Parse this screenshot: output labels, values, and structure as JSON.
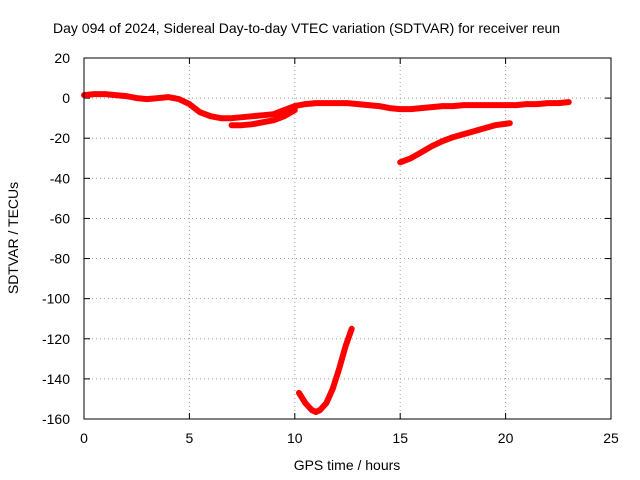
{
  "chart_data": {
    "type": "line",
    "title": "Day 094 of 2024, Sidereal Day-to-day VTEC variation (SDTVAR) for receiver reun",
    "xlabel": "GPS time / hours",
    "ylabel": "SDTVAR / TECUs",
    "xlim": [
      0,
      25
    ],
    "ylim": [
      -160,
      20
    ],
    "xticks": [
      0,
      5,
      10,
      15,
      20,
      25
    ],
    "yticks": [
      -160,
      -140,
      -120,
      -100,
      -80,
      -60,
      -40,
      -20,
      0,
      20
    ],
    "grid": true,
    "series_color": "#ff0000",
    "series": [
      {
        "name": "upper-track",
        "x": [
          0,
          0.5,
          1,
          1.5,
          2,
          2.5,
          3,
          3.5,
          4,
          4.5,
          5,
          5.5,
          6,
          6.5,
          7,
          7.5,
          8,
          8.5,
          9,
          9.5,
          10,
          10.5,
          11,
          11.5,
          12,
          12.5,
          13,
          13.5,
          14,
          14.5,
          15,
          15.5,
          16,
          16.5,
          17,
          17.5,
          18,
          18.5,
          19,
          19.5,
          20,
          20.5,
          21,
          21.5,
          22,
          22.5,
          23
        ],
        "y": [
          1.5,
          2,
          2,
          1.5,
          1,
          0,
          -0.5,
          0,
          0.5,
          -0.5,
          -3,
          -7,
          -9,
          -10,
          -10,
          -9.5,
          -9,
          -8.5,
          -8,
          -6,
          -4,
          -3,
          -2.5,
          -2.5,
          -2.5,
          -2.5,
          -3,
          -3.5,
          -4,
          -5,
          -5.5,
          -5.5,
          -5,
          -4.5,
          -4,
          -4,
          -3.5,
          -3.5,
          -3.5,
          -3.5,
          -3.5,
          -3.5,
          -3,
          -3,
          -2.5,
          -2.5,
          -2
        ]
      },
      {
        "name": "lower-branch",
        "x": [
          7,
          7.5,
          8,
          8.5,
          9,
          9.5,
          10
        ],
        "y": [
          -13.5,
          -13.5,
          -13,
          -12,
          -11,
          -9,
          -6
        ]
      },
      {
        "name": "late-track",
        "x": [
          15,
          15.5,
          16,
          16.5,
          17,
          17.5,
          18,
          18.5,
          19,
          19.5,
          20.2
        ],
        "y": [
          -32,
          -30,
          -27,
          -24,
          -21.5,
          -19.5,
          -18,
          -16.5,
          -15,
          -13.5,
          -12.5
        ]
      },
      {
        "name": "midday-dip",
        "x": [
          10.2,
          10.5,
          10.8,
          11,
          11.2,
          11.5,
          11.8,
          12.1,
          12.4,
          12.7
        ],
        "y": [
          -147,
          -152,
          -155.5,
          -156.5,
          -155.5,
          -152,
          -145,
          -135,
          -124,
          -115
        ]
      }
    ]
  }
}
